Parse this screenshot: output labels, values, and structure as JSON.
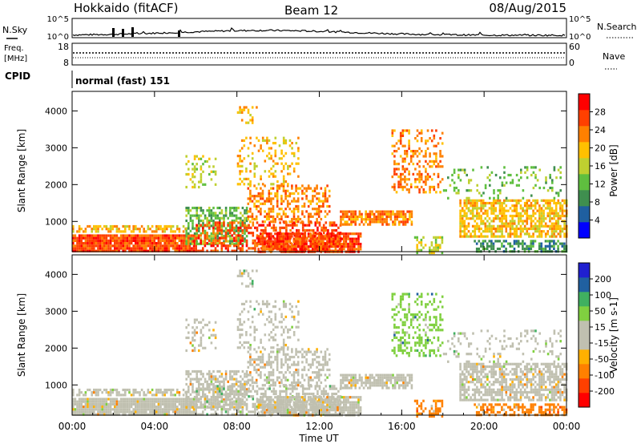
{
  "header": {
    "station": "Hokkaido (fitACF)",
    "beam": "Beam 12",
    "date": "08/Aug/2015"
  },
  "strip": {
    "nsky_label": "N.Sky",
    "nsearch_label": "N.Search",
    "freq_label_line1": "Freq.",
    "freq_label_line2": "[MHz]",
    "nave_label": "Nave",
    "cpid_label": "CPID",
    "cpid_value": "normal (fast) 151",
    "noise_ticks_left": [
      "10^5",
      "10^0"
    ],
    "noise_ticks_right": [
      "10^5",
      "10^0"
    ],
    "freq_ticks_left": [
      "18",
      "8"
    ],
    "nave_ticks_right": [
      "60",
      "0"
    ]
  },
  "colors": {
    "power_scale": [
      "#0000ff",
      "#1f5fa0",
      "#3f8f4f",
      "#5fbf3f",
      "#bfd030",
      "#ffc000",
      "#ff8000",
      "#ff4000",
      "#ff0000"
    ],
    "velocity_scale": [
      "#ff0000",
      "#ff4000",
      "#ff8000",
      "#ffb000",
      "#c0c0b0",
      "#c0c0b0",
      "#80d040",
      "#40b060",
      "#2060a0",
      "#2020d0"
    ]
  },
  "chart_data": [
    {
      "type": "heatmap",
      "name": "power",
      "ylabel": "Slant Range [km]",
      "yticks": [
        "1000",
        "2000",
        "3000",
        "4000"
      ],
      "ylim": [
        180,
        4530
      ],
      "colorbar_label": "Power [dB]",
      "colorbar_ticks": [
        "4",
        "8",
        "12",
        "16",
        "20",
        "24",
        "28"
      ],
      "clim": [
        0,
        32
      ]
    },
    {
      "type": "heatmap",
      "name": "velocity",
      "ylabel": "Slant Range [km]",
      "yticks": [
        "1000",
        "2000",
        "3000",
        "4000"
      ],
      "ylim": [
        180,
        4530
      ],
      "colorbar_label": "Velocity [m s-1]",
      "colorbar_ticks": [
        "-200",
        "-100",
        "-50",
        "-15",
        "15",
        "50",
        "100",
        "200"
      ],
      "xlabel": "Time UT",
      "xticks": [
        "00:00",
        "04:00",
        "08:00",
        "12:00",
        "16:00",
        "20:00",
        "00:00"
      ],
      "xlim": [
        0,
        24
      ]
    }
  ]
}
